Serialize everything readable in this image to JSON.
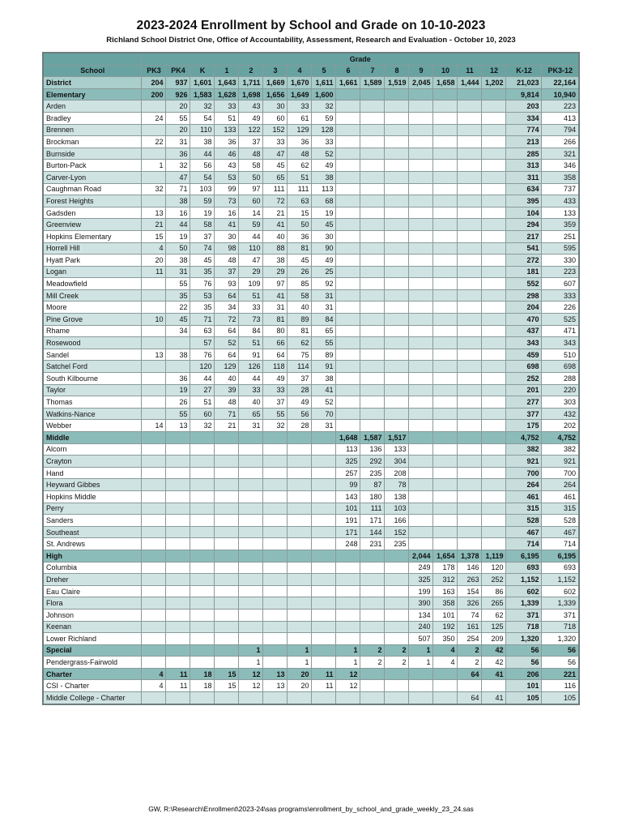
{
  "title": "2023-2024 Enrollment by School and Grade on 10-10-2023",
  "subtitle": "Richland School District One, Office of Accountability, Assessment, Research and Evaluation - October 10, 2023",
  "footer": "GW, R:\\Research\\Enrollment\\2023-24\\sas programs\\enrollment_by_school_and_grade_weekly_23_24.sas",
  "colors": {
    "header-teal": "#68a3a2",
    "band-teal": "#8cbcba",
    "district-teal": "#a9cecb",
    "alt-row": "#cfe3e2",
    "k12-col": "#c8dedd",
    "grid-line": "#8a9a9a"
  },
  "table": {
    "grade_header": "Grade",
    "columns": [
      "School",
      "PK3",
      "PK4",
      "K",
      "1",
      "2",
      "3",
      "4",
      "5",
      "6",
      "7",
      "8",
      "9",
      "10",
      "11",
      "12",
      "K-12",
      "PK3-12"
    ],
    "rows": [
      {
        "name": "District",
        "style": "district",
        "values": [
          "204",
          "937",
          "1,601",
          "1,643",
          "1,711",
          "1,669",
          "1,670",
          "1,611",
          "1,661",
          "1,589",
          "1,519",
          "2,045",
          "1,658",
          "1,444",
          "1,202",
          "21,023",
          "22,164"
        ]
      },
      {
        "name": "Elementary",
        "style": "band",
        "values": [
          "200",
          "926",
          "1,583",
          "1,628",
          "1,698",
          "1,656",
          "1,649",
          "1,600",
          "",
          "",
          "",
          "",
          "",
          "",
          "",
          "9,814",
          "10,940"
        ]
      },
      {
        "name": "Arden",
        "style": "alt",
        "values": [
          "",
          "20",
          "32",
          "33",
          "43",
          "30",
          "33",
          "32",
          "",
          "",
          "",
          "",
          "",
          "",
          "",
          "203",
          "223"
        ]
      },
      {
        "name": "Bradley",
        "style": "white",
        "values": [
          "24",
          "55",
          "54",
          "51",
          "49",
          "60",
          "61",
          "59",
          "",
          "",
          "",
          "",
          "",
          "",
          "",
          "334",
          "413"
        ]
      },
      {
        "name": "Brennen",
        "style": "alt",
        "values": [
          "",
          "20",
          "110",
          "133",
          "122",
          "152",
          "129",
          "128",
          "",
          "",
          "",
          "",
          "",
          "",
          "",
          "774",
          "794"
        ]
      },
      {
        "name": "Brockman",
        "style": "white",
        "values": [
          "22",
          "31",
          "38",
          "36",
          "37",
          "33",
          "36",
          "33",
          "",
          "",
          "",
          "",
          "",
          "",
          "",
          "213",
          "266"
        ]
      },
      {
        "name": "Burnside",
        "style": "alt",
        "values": [
          "",
          "36",
          "44",
          "46",
          "48",
          "47",
          "48",
          "52",
          "",
          "",
          "",
          "",
          "",
          "",
          "",
          "285",
          "321"
        ]
      },
      {
        "name": "Burton-Pack",
        "style": "white",
        "values": [
          "1",
          "32",
          "56",
          "43",
          "58",
          "45",
          "62",
          "49",
          "",
          "",
          "",
          "",
          "",
          "",
          "",
          "313",
          "346"
        ]
      },
      {
        "name": "Carver-Lyon",
        "style": "alt",
        "values": [
          "",
          "47",
          "54",
          "53",
          "50",
          "65",
          "51",
          "38",
          "",
          "",
          "",
          "",
          "",
          "",
          "",
          "311",
          "358"
        ]
      },
      {
        "name": "Caughman Road",
        "style": "white",
        "values": [
          "32",
          "71",
          "103",
          "99",
          "97",
          "111",
          "111",
          "113",
          "",
          "",
          "",
          "",
          "",
          "",
          "",
          "634",
          "737"
        ]
      },
      {
        "name": "Forest Heights",
        "style": "alt",
        "values": [
          "",
          "38",
          "59",
          "73",
          "60",
          "72",
          "63",
          "68",
          "",
          "",
          "",
          "",
          "",
          "",
          "",
          "395",
          "433"
        ]
      },
      {
        "name": "Gadsden",
        "style": "white",
        "values": [
          "13",
          "16",
          "19",
          "16",
          "14",
          "21",
          "15",
          "19",
          "",
          "",
          "",
          "",
          "",
          "",
          "",
          "104",
          "133"
        ]
      },
      {
        "name": "Greenview",
        "style": "alt",
        "values": [
          "21",
          "44",
          "58",
          "41",
          "59",
          "41",
          "50",
          "45",
          "",
          "",
          "",
          "",
          "",
          "",
          "",
          "294",
          "359"
        ]
      },
      {
        "name": "Hopkins Elementary",
        "style": "white",
        "values": [
          "15",
          "19",
          "37",
          "30",
          "44",
          "40",
          "36",
          "30",
          "",
          "",
          "",
          "",
          "",
          "",
          "",
          "217",
          "251"
        ]
      },
      {
        "name": "Horrell Hill",
        "style": "alt",
        "values": [
          "4",
          "50",
          "74",
          "98",
          "110",
          "88",
          "81",
          "90",
          "",
          "",
          "",
          "",
          "",
          "",
          "",
          "541",
          "595"
        ]
      },
      {
        "name": "Hyatt Park",
        "style": "white",
        "values": [
          "20",
          "38",
          "45",
          "48",
          "47",
          "38",
          "45",
          "49",
          "",
          "",
          "",
          "",
          "",
          "",
          "",
          "272",
          "330"
        ]
      },
      {
        "name": "Logan",
        "style": "alt",
        "values": [
          "11",
          "31",
          "35",
          "37",
          "29",
          "29",
          "26",
          "25",
          "",
          "",
          "",
          "",
          "",
          "",
          "",
          "181",
          "223"
        ]
      },
      {
        "name": "Meadowfield",
        "style": "white",
        "values": [
          "",
          "55",
          "76",
          "93",
          "109",
          "97",
          "85",
          "92",
          "",
          "",
          "",
          "",
          "",
          "",
          "",
          "552",
          "607"
        ]
      },
      {
        "name": "Mill Creek",
        "style": "alt",
        "values": [
          "",
          "35",
          "53",
          "64",
          "51",
          "41",
          "58",
          "31",
          "",
          "",
          "",
          "",
          "",
          "",
          "",
          "298",
          "333"
        ]
      },
      {
        "name": "Moore",
        "style": "white",
        "values": [
          "",
          "22",
          "35",
          "34",
          "33",
          "31",
          "40",
          "31",
          "",
          "",
          "",
          "",
          "",
          "",
          "",
          "204",
          "226"
        ]
      },
      {
        "name": "Pine Grove",
        "style": "alt",
        "values": [
          "10",
          "45",
          "71",
          "72",
          "73",
          "81",
          "89",
          "84",
          "",
          "",
          "",
          "",
          "",
          "",
          "",
          "470",
          "525"
        ]
      },
      {
        "name": "Rhame",
        "style": "white",
        "values": [
          "",
          "34",
          "63",
          "64",
          "84",
          "80",
          "81",
          "65",
          "",
          "",
          "",
          "",
          "",
          "",
          "",
          "437",
          "471"
        ]
      },
      {
        "name": "Rosewood",
        "style": "alt",
        "values": [
          "",
          "",
          "57",
          "52",
          "51",
          "66",
          "62",
          "55",
          "",
          "",
          "",
          "",
          "",
          "",
          "",
          "343",
          "343"
        ]
      },
      {
        "name": "Sandel",
        "style": "white",
        "values": [
          "13",
          "38",
          "76",
          "64",
          "91",
          "64",
          "75",
          "89",
          "",
          "",
          "",
          "",
          "",
          "",
          "",
          "459",
          "510"
        ]
      },
      {
        "name": "Satchel Ford",
        "style": "alt",
        "values": [
          "",
          "",
          "120",
          "129",
          "126",
          "118",
          "114",
          "91",
          "",
          "",
          "",
          "",
          "",
          "",
          "",
          "698",
          "698"
        ]
      },
      {
        "name": "South Kilbourne",
        "style": "white",
        "values": [
          "",
          "36",
          "44",
          "40",
          "44",
          "49",
          "37",
          "38",
          "",
          "",
          "",
          "",
          "",
          "",
          "",
          "252",
          "288"
        ]
      },
      {
        "name": "Taylor",
        "style": "alt",
        "values": [
          "",
          "19",
          "27",
          "39",
          "33",
          "33",
          "28",
          "41",
          "",
          "",
          "",
          "",
          "",
          "",
          "",
          "201",
          "220"
        ]
      },
      {
        "name": "Thomas",
        "style": "white",
        "values": [
          "",
          "26",
          "51",
          "48",
          "40",
          "37",
          "49",
          "52",
          "",
          "",
          "",
          "",
          "",
          "",
          "",
          "277",
          "303"
        ]
      },
      {
        "name": "Watkins-Nance",
        "style": "alt",
        "values": [
          "",
          "55",
          "60",
          "71",
          "65",
          "55",
          "56",
          "70",
          "",
          "",
          "",
          "",
          "",
          "",
          "",
          "377",
          "432"
        ]
      },
      {
        "name": "Webber",
        "style": "white",
        "values": [
          "14",
          "13",
          "32",
          "21",
          "31",
          "32",
          "28",
          "31",
          "",
          "",
          "",
          "",
          "",
          "",
          "",
          "175",
          "202"
        ]
      },
      {
        "name": "Middle",
        "style": "band",
        "values": [
          "",
          "",
          "",
          "",
          "",
          "",
          "",
          "",
          "1,648",
          "1,587",
          "1,517",
          "",
          "",
          "",
          "",
          "4,752",
          "4,752"
        ]
      },
      {
        "name": "Alcorn",
        "style": "white",
        "values": [
          "",
          "",
          "",
          "",
          "",
          "",
          "",
          "",
          "113",
          "136",
          "133",
          "",
          "",
          "",
          "",
          "382",
          "382"
        ]
      },
      {
        "name": "Crayton",
        "style": "alt",
        "values": [
          "",
          "",
          "",
          "",
          "",
          "",
          "",
          "",
          "325",
          "292",
          "304",
          "",
          "",
          "",
          "",
          "921",
          "921"
        ]
      },
      {
        "name": "Hand",
        "style": "white",
        "values": [
          "",
          "",
          "",
          "",
          "",
          "",
          "",
          "",
          "257",
          "235",
          "208",
          "",
          "",
          "",
          "",
          "700",
          "700"
        ]
      },
      {
        "name": "Heyward Gibbes",
        "style": "alt",
        "values": [
          "",
          "",
          "",
          "",
          "",
          "",
          "",
          "",
          "99",
          "87",
          "78",
          "",
          "",
          "",
          "",
          "264",
          "264"
        ]
      },
      {
        "name": "Hopkins Middle",
        "style": "white",
        "values": [
          "",
          "",
          "",
          "",
          "",
          "",
          "",
          "",
          "143",
          "180",
          "138",
          "",
          "",
          "",
          "",
          "461",
          "461"
        ]
      },
      {
        "name": "Perry",
        "style": "alt",
        "values": [
          "",
          "",
          "",
          "",
          "",
          "",
          "",
          "",
          "101",
          "111",
          "103",
          "",
          "",
          "",
          "",
          "315",
          "315"
        ]
      },
      {
        "name": "Sanders",
        "style": "white",
        "values": [
          "",
          "",
          "",
          "",
          "",
          "",
          "",
          "",
          "191",
          "171",
          "166",
          "",
          "",
          "",
          "",
          "528",
          "528"
        ]
      },
      {
        "name": "Southeast",
        "style": "alt",
        "values": [
          "",
          "",
          "",
          "",
          "",
          "",
          "",
          "",
          "171",
          "144",
          "152",
          "",
          "",
          "",
          "",
          "467",
          "467"
        ]
      },
      {
        "name": "St. Andrews",
        "style": "white",
        "values": [
          "",
          "",
          "",
          "",
          "",
          "",
          "",
          "",
          "248",
          "231",
          "235",
          "",
          "",
          "",
          "",
          "714",
          "714"
        ]
      },
      {
        "name": "High",
        "style": "band",
        "values": [
          "",
          "",
          "",
          "",
          "",
          "",
          "",
          "",
          "",
          "",
          "",
          "2,044",
          "1,654",
          "1,378",
          "1,119",
          "6,195",
          "6,195"
        ]
      },
      {
        "name": "Columbia",
        "style": "white",
        "values": [
          "",
          "",
          "",
          "",
          "",
          "",
          "",
          "",
          "",
          "",
          "",
          "249",
          "178",
          "146",
          "120",
          "693",
          "693"
        ]
      },
      {
        "name": "Dreher",
        "style": "alt",
        "values": [
          "",
          "",
          "",
          "",
          "",
          "",
          "",
          "",
          "",
          "",
          "",
          "325",
          "312",
          "263",
          "252",
          "1,152",
          "1,152"
        ]
      },
      {
        "name": "Eau Claire",
        "style": "white",
        "values": [
          "",
          "",
          "",
          "",
          "",
          "",
          "",
          "",
          "",
          "",
          "",
          "199",
          "163",
          "154",
          "86",
          "602",
          "602"
        ]
      },
      {
        "name": "Flora",
        "style": "alt",
        "values": [
          "",
          "",
          "",
          "",
          "",
          "",
          "",
          "",
          "",
          "",
          "",
          "390",
          "358",
          "326",
          "265",
          "1,339",
          "1,339"
        ]
      },
      {
        "name": "Johnson",
        "style": "white",
        "values": [
          "",
          "",
          "",
          "",
          "",
          "",
          "",
          "",
          "",
          "",
          "",
          "134",
          "101",
          "74",
          "62",
          "371",
          "371"
        ]
      },
      {
        "name": "Keenan",
        "style": "alt",
        "values": [
          "",
          "",
          "",
          "",
          "",
          "",
          "",
          "",
          "",
          "",
          "",
          "240",
          "192",
          "161",
          "125",
          "718",
          "718"
        ]
      },
      {
        "name": "Lower Richland",
        "style": "white",
        "values": [
          "",
          "",
          "",
          "",
          "",
          "",
          "",
          "",
          "",
          "",
          "",
          "507",
          "350",
          "254",
          "209",
          "1,320",
          "1,320"
        ]
      },
      {
        "name": "Special",
        "style": "band",
        "values": [
          "",
          "",
          "",
          "",
          "1",
          "",
          "1",
          "",
          "1",
          "2",
          "2",
          "1",
          "4",
          "2",
          "42",
          "56",
          "56"
        ]
      },
      {
        "name": "Pendergrass-Fairwold",
        "style": "white",
        "values": [
          "",
          "",
          "",
          "",
          "1",
          "",
          "1",
          "",
          "1",
          "2",
          "2",
          "1",
          "4",
          "2",
          "42",
          "56",
          "56"
        ]
      },
      {
        "name": "Charter",
        "style": "band",
        "values": [
          "4",
          "11",
          "18",
          "15",
          "12",
          "13",
          "20",
          "11",
          "12",
          "",
          "",
          "",
          "",
          "64",
          "41",
          "206",
          "221"
        ]
      },
      {
        "name": "CSI - Charter",
        "style": "white",
        "values": [
          "4",
          "11",
          "18",
          "15",
          "12",
          "13",
          "20",
          "11",
          "12",
          "",
          "",
          "",
          "",
          "",
          "",
          "101",
          "116"
        ]
      },
      {
        "name": "Middle College - Charter",
        "style": "alt",
        "values": [
          "",
          "",
          "",
          "",
          "",
          "",
          "",
          "",
          "",
          "",
          "",
          "",
          "",
          "64",
          "41",
          "105",
          "105"
        ]
      }
    ]
  }
}
